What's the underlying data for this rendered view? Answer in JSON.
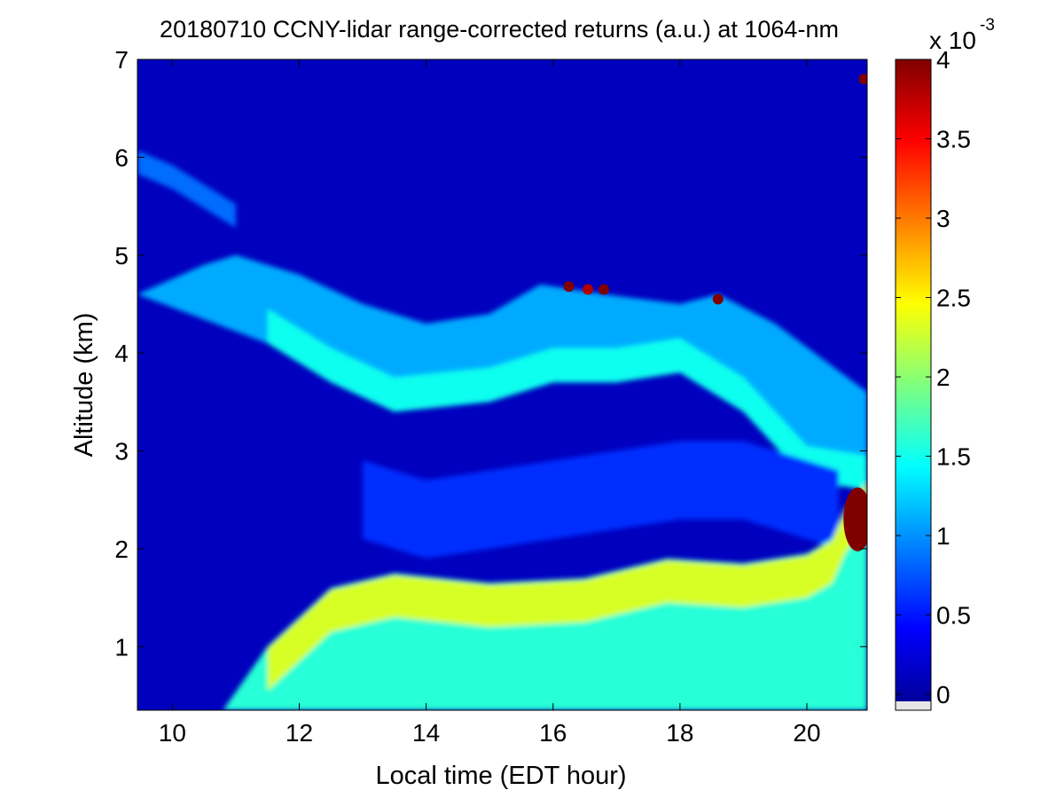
{
  "chart_data": {
    "type": "heatmap",
    "title": "20180710 CCNY-lidar range-corrected returns (a.u.) at 1064-nm",
    "xlabel": "Local time (EDT hour)",
    "ylabel": "Altitude (km)",
    "xlim": [
      9.45,
      20.95
    ],
    "ylim": [
      0.35,
      7.0
    ],
    "x_ticks": [
      "10",
      "12",
      "14",
      "16",
      "18",
      "20"
    ],
    "y_ticks": [
      "1",
      "2",
      "3",
      "4",
      "5",
      "6",
      "7"
    ],
    "colormap": "jet",
    "colorbar": {
      "range": [
        -0.1,
        4.0
      ],
      "ticks": [
        "0",
        "0.5",
        "1",
        "1.5",
        "2",
        "2.5",
        "3",
        "3.5",
        "4"
      ],
      "exponent_base": "x 10",
      "exponent_power": "-3",
      "placement": "right"
    },
    "grid": false,
    "features": {
      "boundary_layer_top_km": [
        [
          9.45,
          0.35
        ],
        [
          10.8,
          0.35
        ],
        [
          11.5,
          1.0
        ],
        [
          12.5,
          1.6
        ],
        [
          13.5,
          1.75
        ],
        [
          15.0,
          1.65
        ],
        [
          16.5,
          1.7
        ],
        [
          17.8,
          1.9
        ],
        [
          19.0,
          1.85
        ],
        [
          20.0,
          1.95
        ],
        [
          20.4,
          2.1
        ],
        [
          20.6,
          2.4
        ],
        [
          20.95,
          2.7
        ]
      ],
      "mixed_layer_value": 1.6,
      "elevated_aerosol_layer_top_km": [
        [
          9.45,
          4.6
        ],
        [
          10.5,
          4.9
        ],
        [
          11.0,
          5.0
        ],
        [
          12.0,
          4.8
        ],
        [
          13.0,
          4.5
        ],
        [
          14.0,
          4.3
        ],
        [
          15.0,
          4.4
        ],
        [
          15.8,
          4.7
        ],
        [
          16.8,
          4.6
        ],
        [
          18.0,
          4.5
        ],
        [
          18.6,
          4.6
        ],
        [
          19.5,
          4.3
        ],
        [
          20.95,
          3.6
        ]
      ],
      "elevated_aerosol_layer_bottom_km": [
        [
          11.5,
          4.1
        ],
        [
          12.5,
          3.7
        ],
        [
          13.5,
          3.4
        ],
        [
          15.0,
          3.5
        ],
        [
          16.0,
          3.7
        ],
        [
          17.0,
          3.7
        ],
        [
          18.0,
          3.8
        ],
        [
          19.0,
          3.4
        ],
        [
          20.0,
          2.7
        ],
        [
          20.95,
          2.6
        ]
      ],
      "elevated_aerosol_layer_value": 1.1,
      "lower_residual_layer_km": [
        [
          13.0,
          2.4
        ],
        [
          14.0,
          2.2
        ],
        [
          15.0,
          2.3
        ],
        [
          16.0,
          2.4
        ],
        [
          17.0,
          2.5
        ],
        [
          18.0,
          2.6
        ],
        [
          19.0,
          2.6
        ],
        [
          20.0,
          2.4
        ],
        [
          20.5,
          2.3
        ]
      ],
      "lower_residual_layer_value": 0.6,
      "upper_residual_filament_km": [
        [
          9.45,
          5.95
        ],
        [
          10.0,
          5.8
        ],
        [
          10.5,
          5.6
        ],
        [
          11.0,
          5.4
        ]
      ],
      "upper_residual_filament_value": 0.85,
      "cloud_features": [
        {
          "time": 16.25,
          "altitude_km": 4.68,
          "value": 4.0
        },
        {
          "time": 16.55,
          "altitude_km": 4.65,
          "value": 3.8
        },
        {
          "time": 16.8,
          "altitude_km": 4.65,
          "value": 4.0
        },
        {
          "time": 18.6,
          "altitude_km": 4.55,
          "value": 4.0
        },
        {
          "time": 20.8,
          "altitude_km": 2.3,
          "value": 4.0
        },
        {
          "time": 20.9,
          "altitude_km": 6.8,
          "value": 4.0
        }
      ],
      "background_free_troposphere_value": 0.15
    }
  }
}
